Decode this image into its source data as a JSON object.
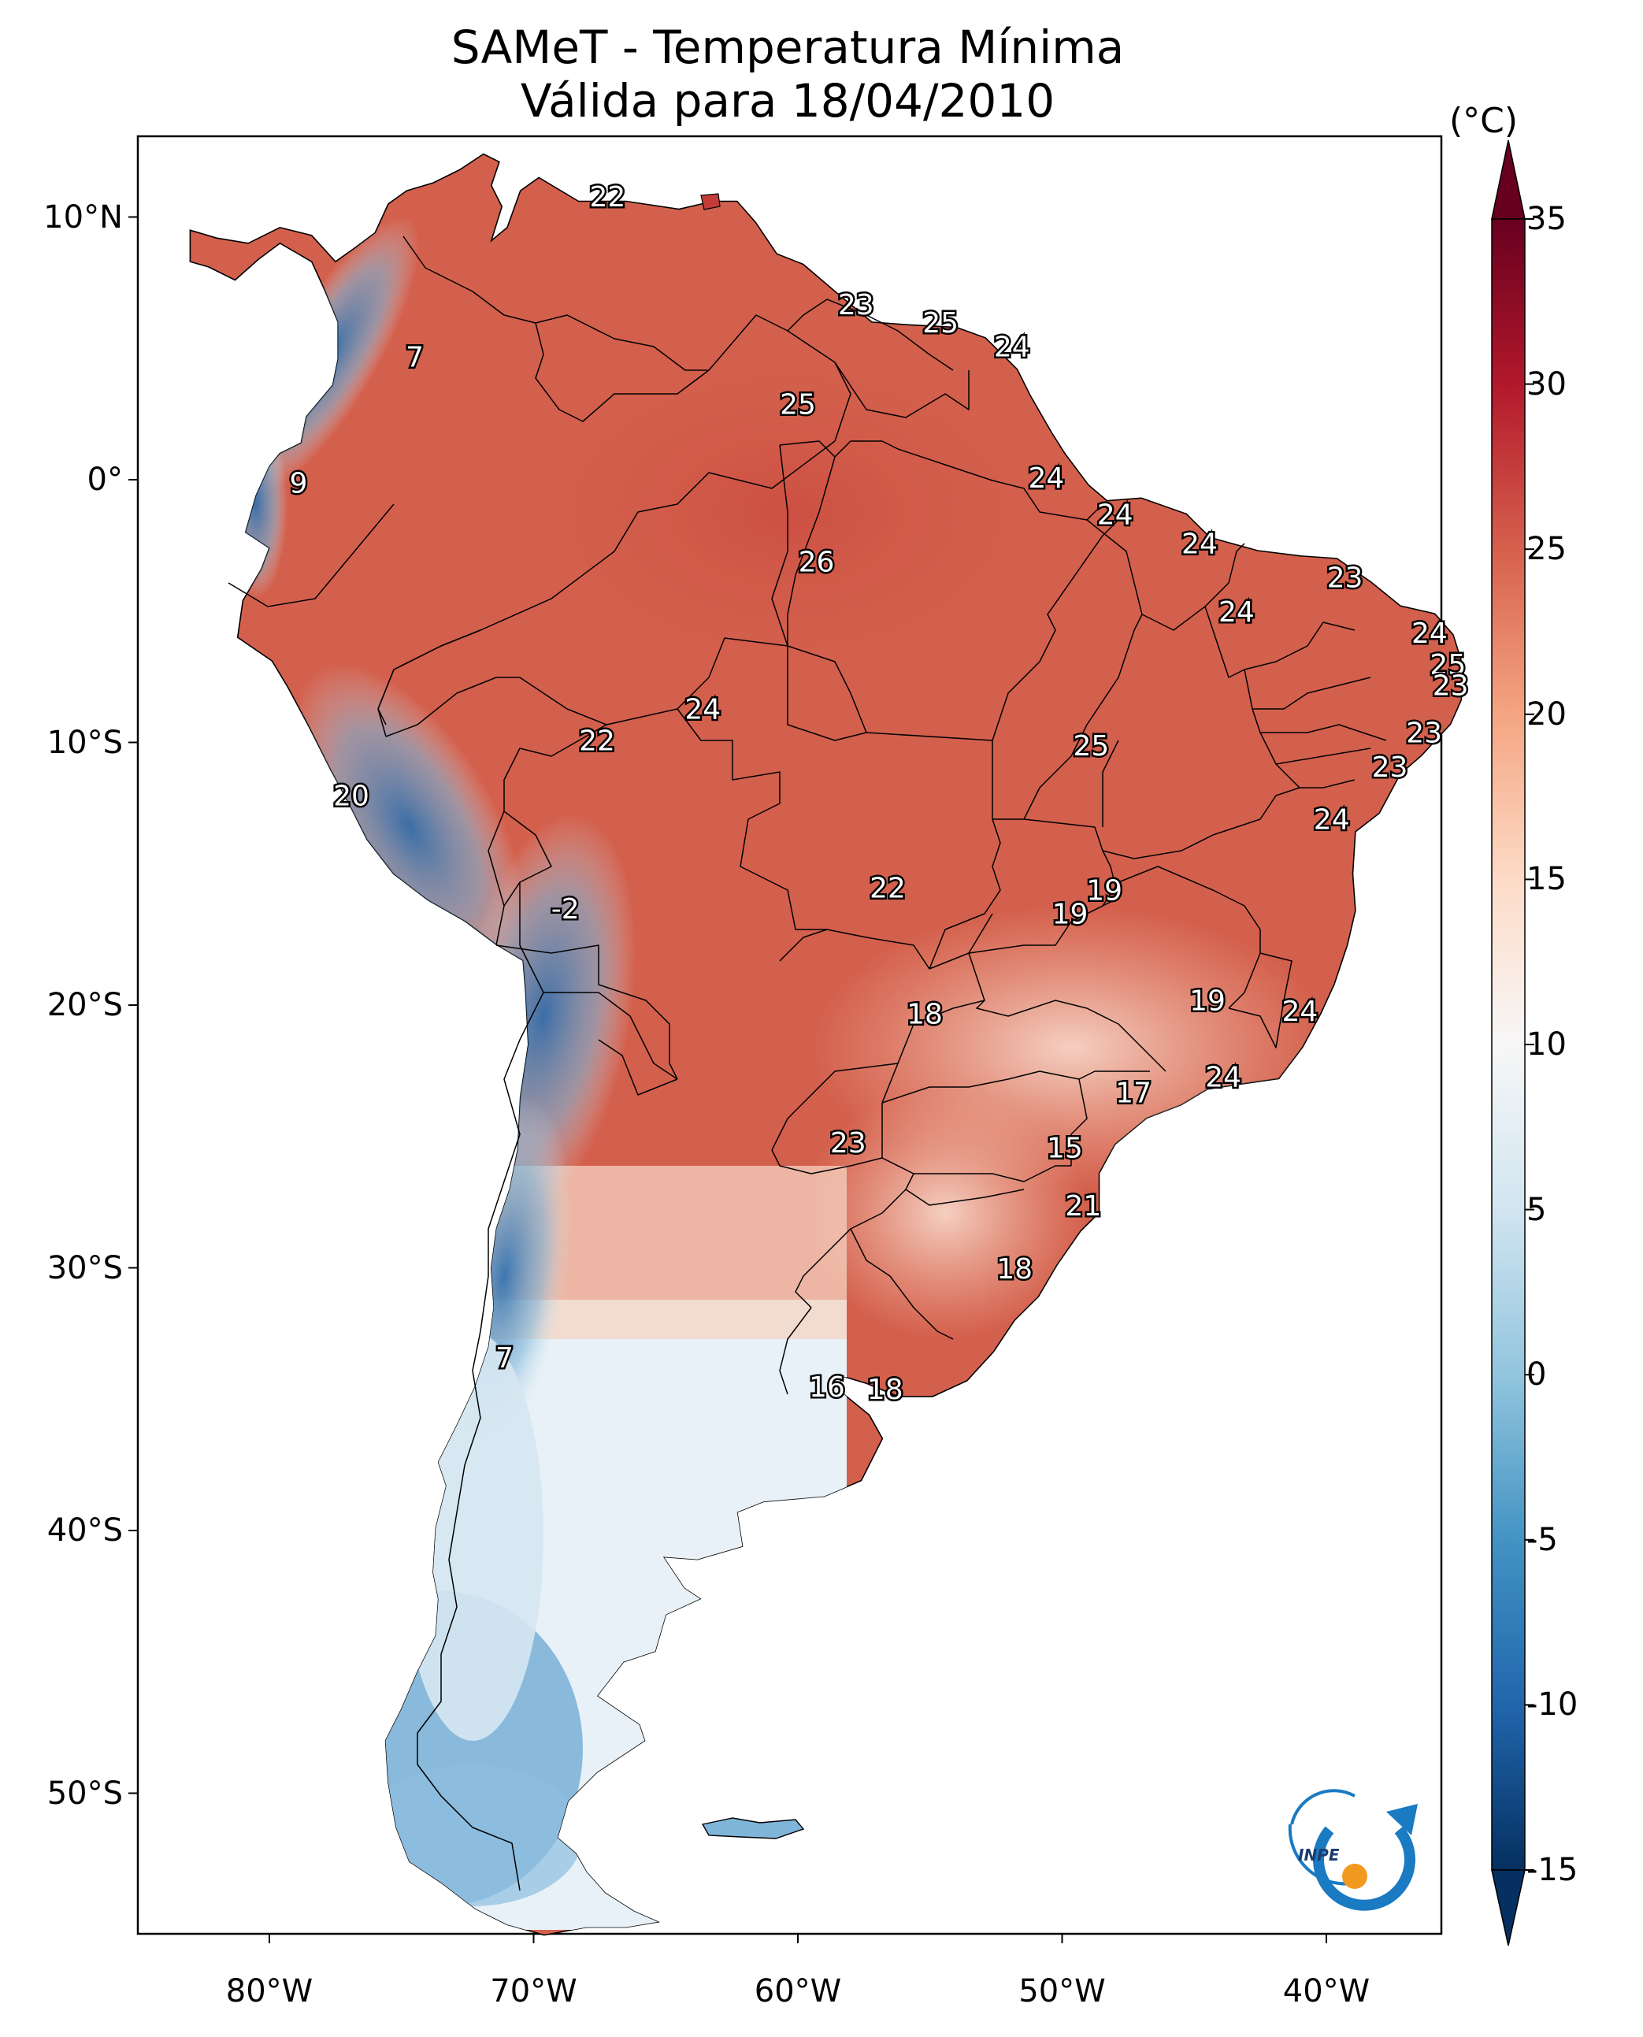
{
  "title_line1": "SAMeT - Temperatura Mínima",
  "title_line2": "Válida para 18/04/2010",
  "colorbar": {
    "unit": "(°C)",
    "min": -15,
    "max": 35,
    "ticks": [
      "35",
      "30",
      "25",
      "20",
      "15",
      "10",
      "5",
      "0",
      "-5",
      "-10",
      "-15"
    ]
  },
  "axes": {
    "lat_labels": [
      "10°N",
      "0°",
      "10°S",
      "20°S",
      "30°S",
      "40°S",
      "50°S"
    ],
    "lon_labels": [
      "80°W",
      "70°W",
      "60°W",
      "50°W",
      "40°W"
    ]
  },
  "annotations": [
    {
      "text": "22",
      "lon": -67.2,
      "lat": 10.7
    },
    {
      "text": "7",
      "lon": -74.5,
      "lat": 4.6
    },
    {
      "text": "23",
      "lon": -57.8,
      "lat": 6.6
    },
    {
      "text": "25",
      "lon": -54.6,
      "lat": 5.9
    },
    {
      "text": "24",
      "lon": -51.9,
      "lat": 5.0
    },
    {
      "text": "25",
      "lon": -60.0,
      "lat": 2.8
    },
    {
      "text": "9",
      "lon": -78.9,
      "lat": -0.2
    },
    {
      "text": "24",
      "lon": -50.6,
      "lat": 0.0
    },
    {
      "text": "24",
      "lon": -48.0,
      "lat": -1.4
    },
    {
      "text": "26",
      "lon": -59.3,
      "lat": -3.2
    },
    {
      "text": "24",
      "lon": -44.8,
      "lat": -2.5
    },
    {
      "text": "23",
      "lon": -39.3,
      "lat": -3.8
    },
    {
      "text": "24",
      "lon": -43.4,
      "lat": -5.1
    },
    {
      "text": "24",
      "lon": -36.1,
      "lat": -5.9
    },
    {
      "text": "25",
      "lon": -35.4,
      "lat": -7.1
    },
    {
      "text": "23",
      "lon": -35.3,
      "lat": -7.9
    },
    {
      "text": "24",
      "lon": -63.6,
      "lat": -8.8
    },
    {
      "text": "22",
      "lon": -67.6,
      "lat": -10.0
    },
    {
      "text": "25",
      "lon": -48.9,
      "lat": -10.2
    },
    {
      "text": "23",
      "lon": -36.3,
      "lat": -9.7
    },
    {
      "text": "23",
      "lon": -37.6,
      "lat": -11.0
    },
    {
      "text": "20",
      "lon": -76.9,
      "lat": -12.1
    },
    {
      "text": "24",
      "lon": -39.8,
      "lat": -13.0
    },
    {
      "text": "22",
      "lon": -56.6,
      "lat": -15.6
    },
    {
      "text": "19",
      "lon": -48.4,
      "lat": -15.7
    },
    {
      "text": "19",
      "lon": -49.7,
      "lat": -16.6
    },
    {
      "text": "-2",
      "lon": -68.8,
      "lat": -16.4
    },
    {
      "text": "19",
      "lon": -44.5,
      "lat": -19.9
    },
    {
      "text": "18",
      "lon": -55.2,
      "lat": -20.4
    },
    {
      "text": "24",
      "lon": -41.0,
      "lat": -20.3
    },
    {
      "text": "24",
      "lon": -43.9,
      "lat": -22.8
    },
    {
      "text": "17",
      "lon": -47.3,
      "lat": -23.4
    },
    {
      "text": "23",
      "lon": -58.1,
      "lat": -25.3
    },
    {
      "text": "15",
      "lon": -49.9,
      "lat": -25.5
    },
    {
      "text": "21",
      "lon": -49.2,
      "lat": -27.7
    },
    {
      "text": "18",
      "lon": -51.8,
      "lat": -30.1
    },
    {
      "text": "7",
      "lon": -71.1,
      "lat": -33.5
    },
    {
      "text": "16",
      "lon": -58.9,
      "lat": -34.6
    },
    {
      "text": "18",
      "lon": -56.7,
      "lat": -34.7
    }
  ]
}
